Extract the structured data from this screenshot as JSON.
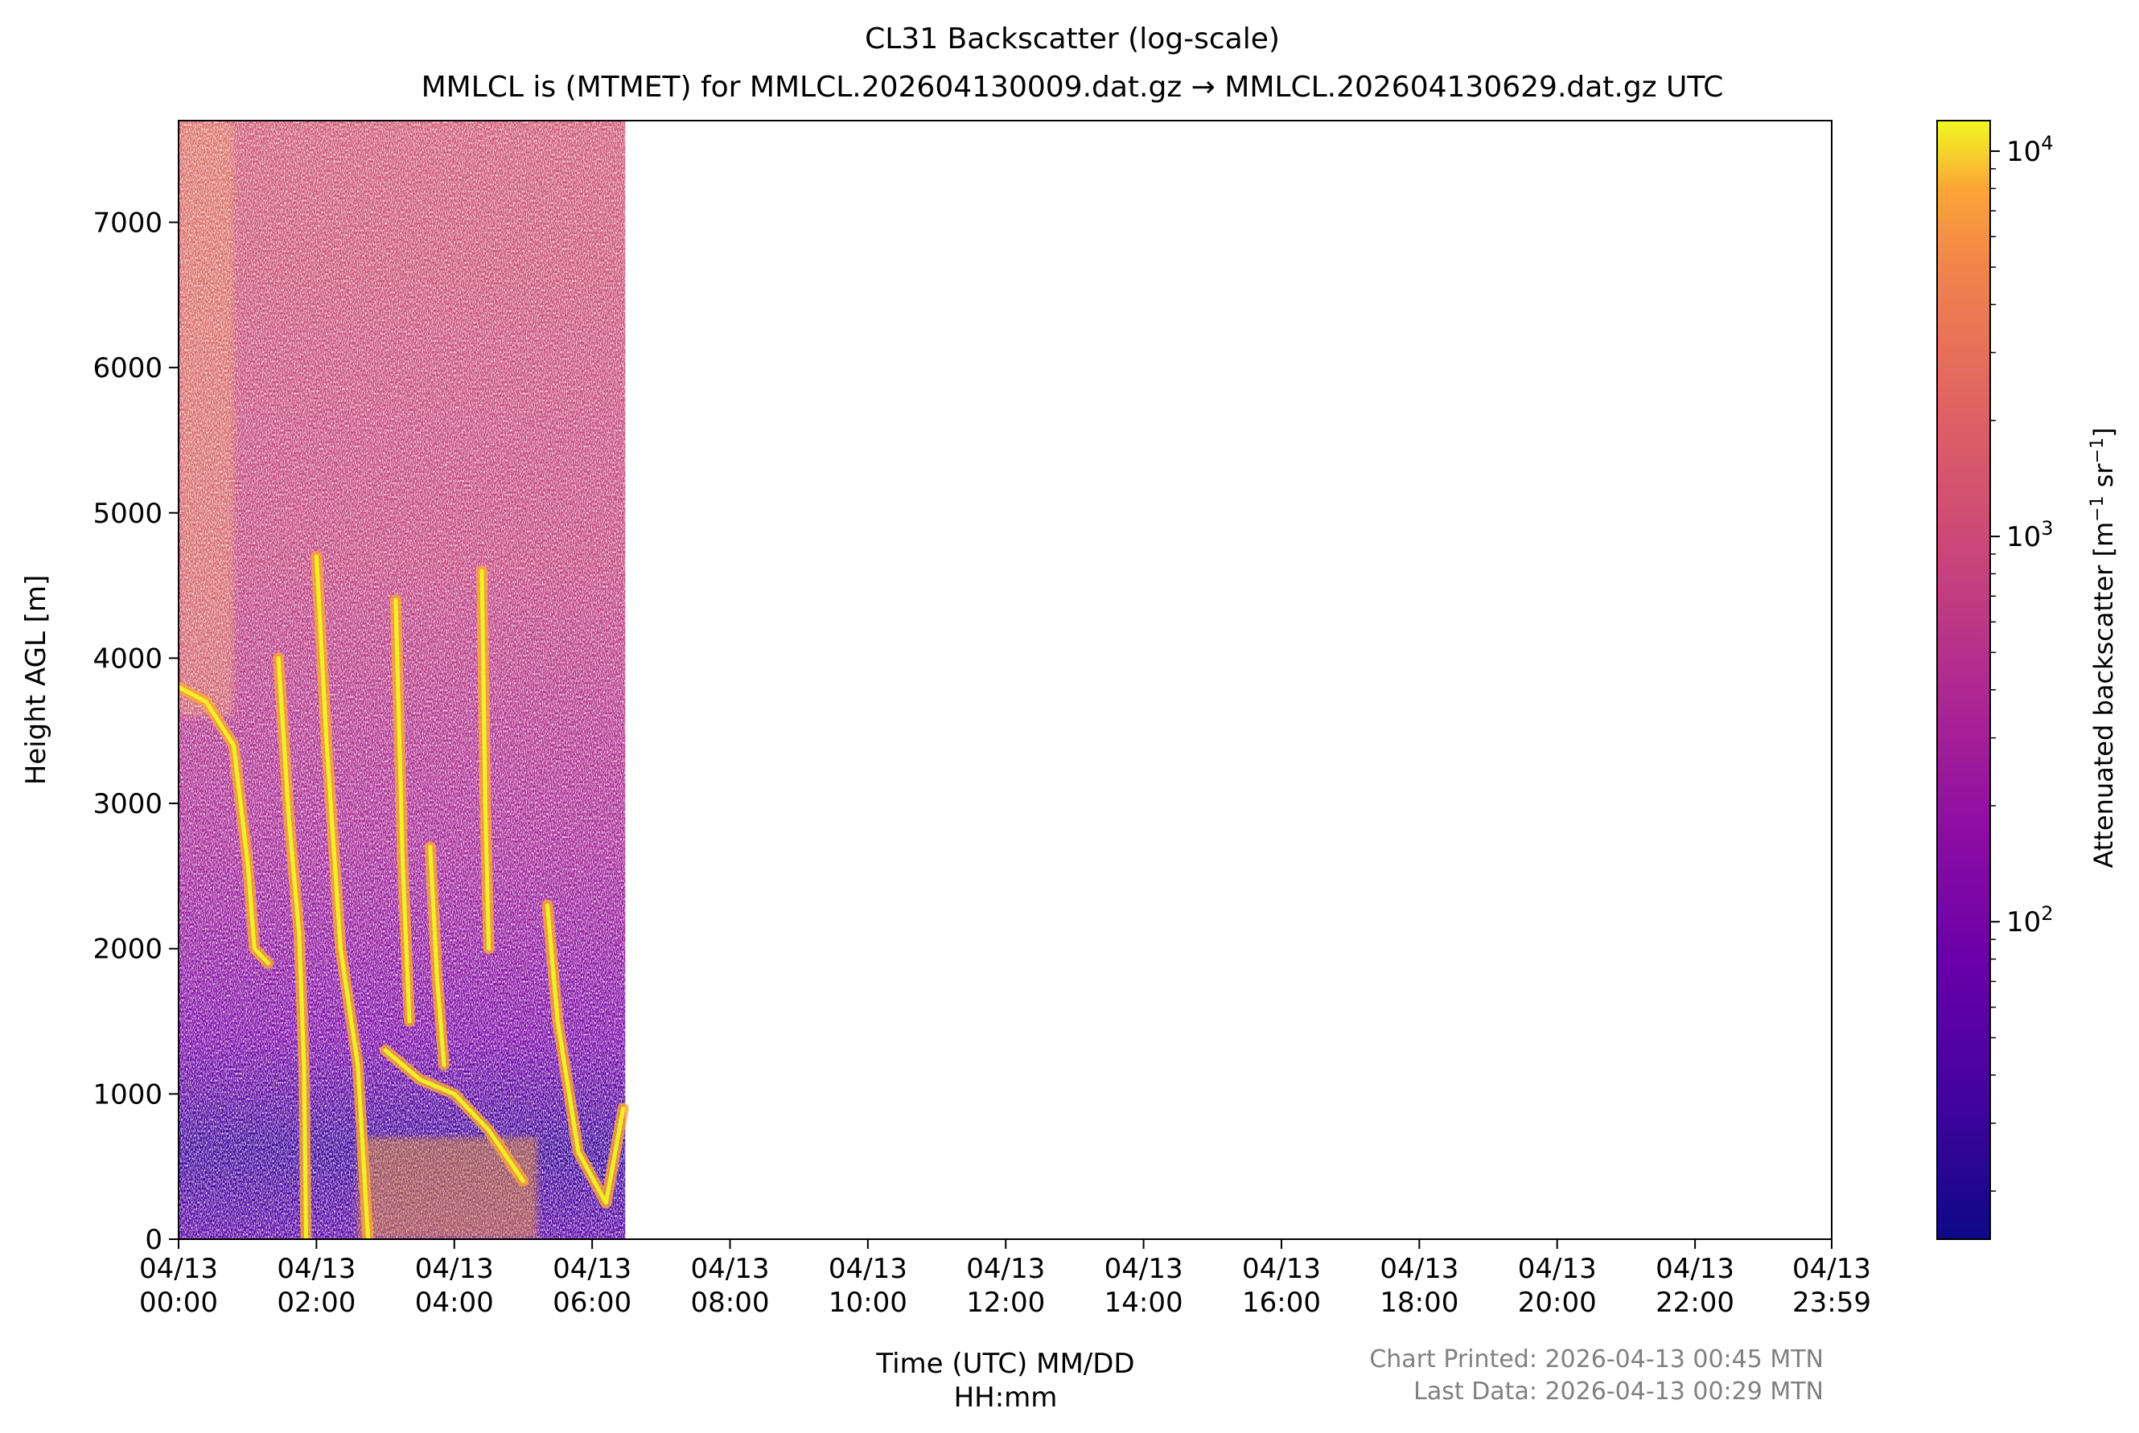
{
  "chart_data": {
    "type": "heatmap",
    "title": "CL31 Backscatter (log-scale)",
    "subtitle": "MMLCL is (MTMET) for MMLCL.202604130009.dat.gz → MMLCL.202604130629.dat.gz UTC",
    "xlabel_line1": "Time (UTC) MM/DD",
    "xlabel_line2": "HH:mm",
    "ylabel": "Height AGL [m]",
    "x_range_hours": [
      0,
      23.983
    ],
    "ylim": [
      0,
      7700
    ],
    "data_extent_hours": [
      0,
      6.48
    ],
    "x_ticks": [
      {
        "hour": 0,
        "date": "04/13",
        "time": "00:00"
      },
      {
        "hour": 2,
        "date": "04/13",
        "time": "02:00"
      },
      {
        "hour": 4,
        "date": "04/13",
        "time": "04:00"
      },
      {
        "hour": 6,
        "date": "04/13",
        "time": "06:00"
      },
      {
        "hour": 8,
        "date": "04/13",
        "time": "08:00"
      },
      {
        "hour": 10,
        "date": "04/13",
        "time": "10:00"
      },
      {
        "hour": 12,
        "date": "04/13",
        "time": "12:00"
      },
      {
        "hour": 14,
        "date": "04/13",
        "time": "14:00"
      },
      {
        "hour": 16,
        "date": "04/13",
        "time": "16:00"
      },
      {
        "hour": 18,
        "date": "04/13",
        "time": "18:00"
      },
      {
        "hour": 20,
        "date": "04/13",
        "time": "20:00"
      },
      {
        "hour": 22,
        "date": "04/13",
        "time": "22:00"
      },
      {
        "hour": 23.983,
        "date": "04/13",
        "time": "23:59"
      }
    ],
    "y_ticks": [
      0,
      1000,
      2000,
      3000,
      4000,
      5000,
      6000,
      7000
    ],
    "colorbar": {
      "label": "Attenuated backscatter [m",
      "label_exp1": "−1",
      "label_mid": " sr",
      "label_exp2": "−1",
      "label_end": "]",
      "scale": "log",
      "range": [
        15,
        12000
      ],
      "colormap": "plasma",
      "ticks": [
        {
          "value": 100,
          "base": "10",
          "exp": "2"
        },
        {
          "value": 1000,
          "base": "10",
          "exp": "3"
        },
        {
          "value": 10000,
          "base": "10",
          "exp": "4"
        }
      ]
    },
    "cloud_traces": [
      {
        "points": [
          [
            1.45,
            4000
          ],
          [
            1.6,
            2900
          ],
          [
            1.75,
            2100
          ],
          [
            1.82,
            1200
          ],
          [
            1.85,
            0
          ]
        ]
      },
      {
        "points": [
          [
            2.0,
            4700
          ],
          [
            2.15,
            3400
          ],
          [
            2.35,
            2000
          ],
          [
            2.6,
            1200
          ],
          [
            2.75,
            0
          ]
        ]
      },
      {
        "points": [
          [
            3.0,
            1300
          ],
          [
            3.5,
            1100
          ],
          [
            4.0,
            1000
          ],
          [
            4.5,
            750
          ],
          [
            5.0,
            400
          ]
        ]
      },
      {
        "points": [
          [
            5.35,
            2300
          ],
          [
            5.5,
            1500
          ],
          [
            5.8,
            600
          ],
          [
            6.2,
            250
          ],
          [
            6.45,
            900
          ]
        ]
      },
      {
        "points": [
          [
            0.0,
            3800
          ],
          [
            0.4,
            3700
          ],
          [
            0.8,
            3400
          ],
          [
            1.0,
            2600
          ],
          [
            1.1,
            2000
          ],
          [
            1.3,
            1900
          ]
        ]
      },
      {
        "points": [
          [
            3.15,
            4400
          ],
          [
            3.25,
            2600
          ],
          [
            3.35,
            1500
          ]
        ]
      },
      {
        "points": [
          [
            3.65,
            2700
          ],
          [
            3.75,
            1800
          ],
          [
            3.85,
            1200
          ]
        ]
      },
      {
        "points": [
          [
            4.4,
            4600
          ],
          [
            4.45,
            3000
          ],
          [
            4.5,
            2000
          ]
        ]
      }
    ]
  },
  "footer": {
    "printed": "Chart Printed: 2026-04-13 00:45 MTN",
    "last_data": "Last Data: 2026-04-13 00:29 MTN"
  },
  "colors": {
    "axis": "#000000",
    "footer_text": "#808080"
  }
}
